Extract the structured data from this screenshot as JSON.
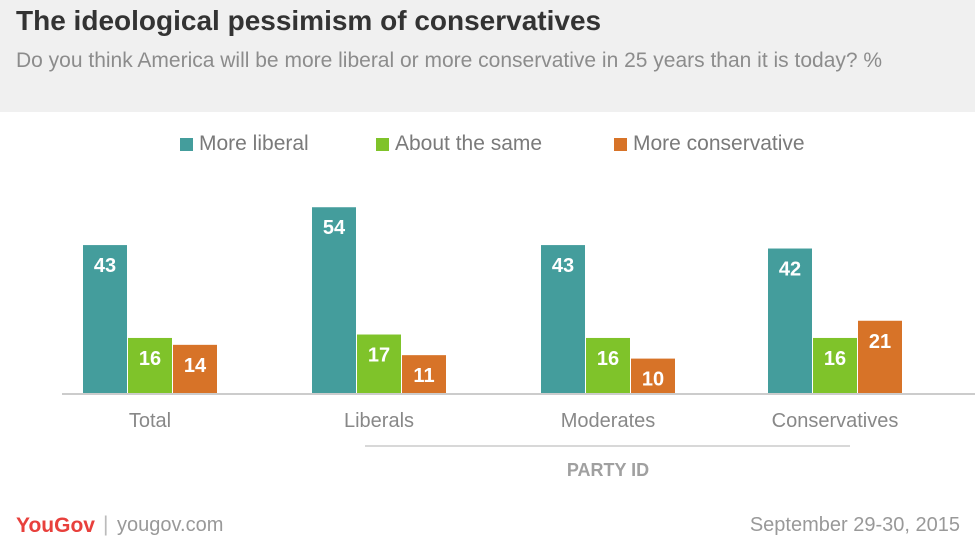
{
  "header": {
    "title": "The ideological pessimism of conservatives",
    "subtitle": "Do you think America will be more liberal or more conservative in 25 years than it is today? %"
  },
  "chart_data": {
    "type": "bar",
    "categories": [
      "Total",
      "Liberals",
      "Moderates",
      "Conservatives"
    ],
    "series": [
      {
        "name": "More liberal",
        "color": "#449d9c",
        "values": [
          43,
          54,
          43,
          42
        ]
      },
      {
        "name": "About the same",
        "color": "#7fc32a",
        "values": [
          16,
          17,
          16,
          16
        ]
      },
      {
        "name": "More conservative",
        "color": "#d77328",
        "values": [
          14,
          11,
          10,
          21
        ]
      }
    ],
    "group_label": "PARTY ID",
    "group_label_categories": [
      "Liberals",
      "Moderates",
      "Conservatives"
    ],
    "legend_position": "top",
    "grid": false,
    "ylim": [
      0,
      60
    ]
  },
  "footer": {
    "brand": "YouGov",
    "separator": "|",
    "url": "yougov.com",
    "date": "September 29-30, 2015"
  }
}
